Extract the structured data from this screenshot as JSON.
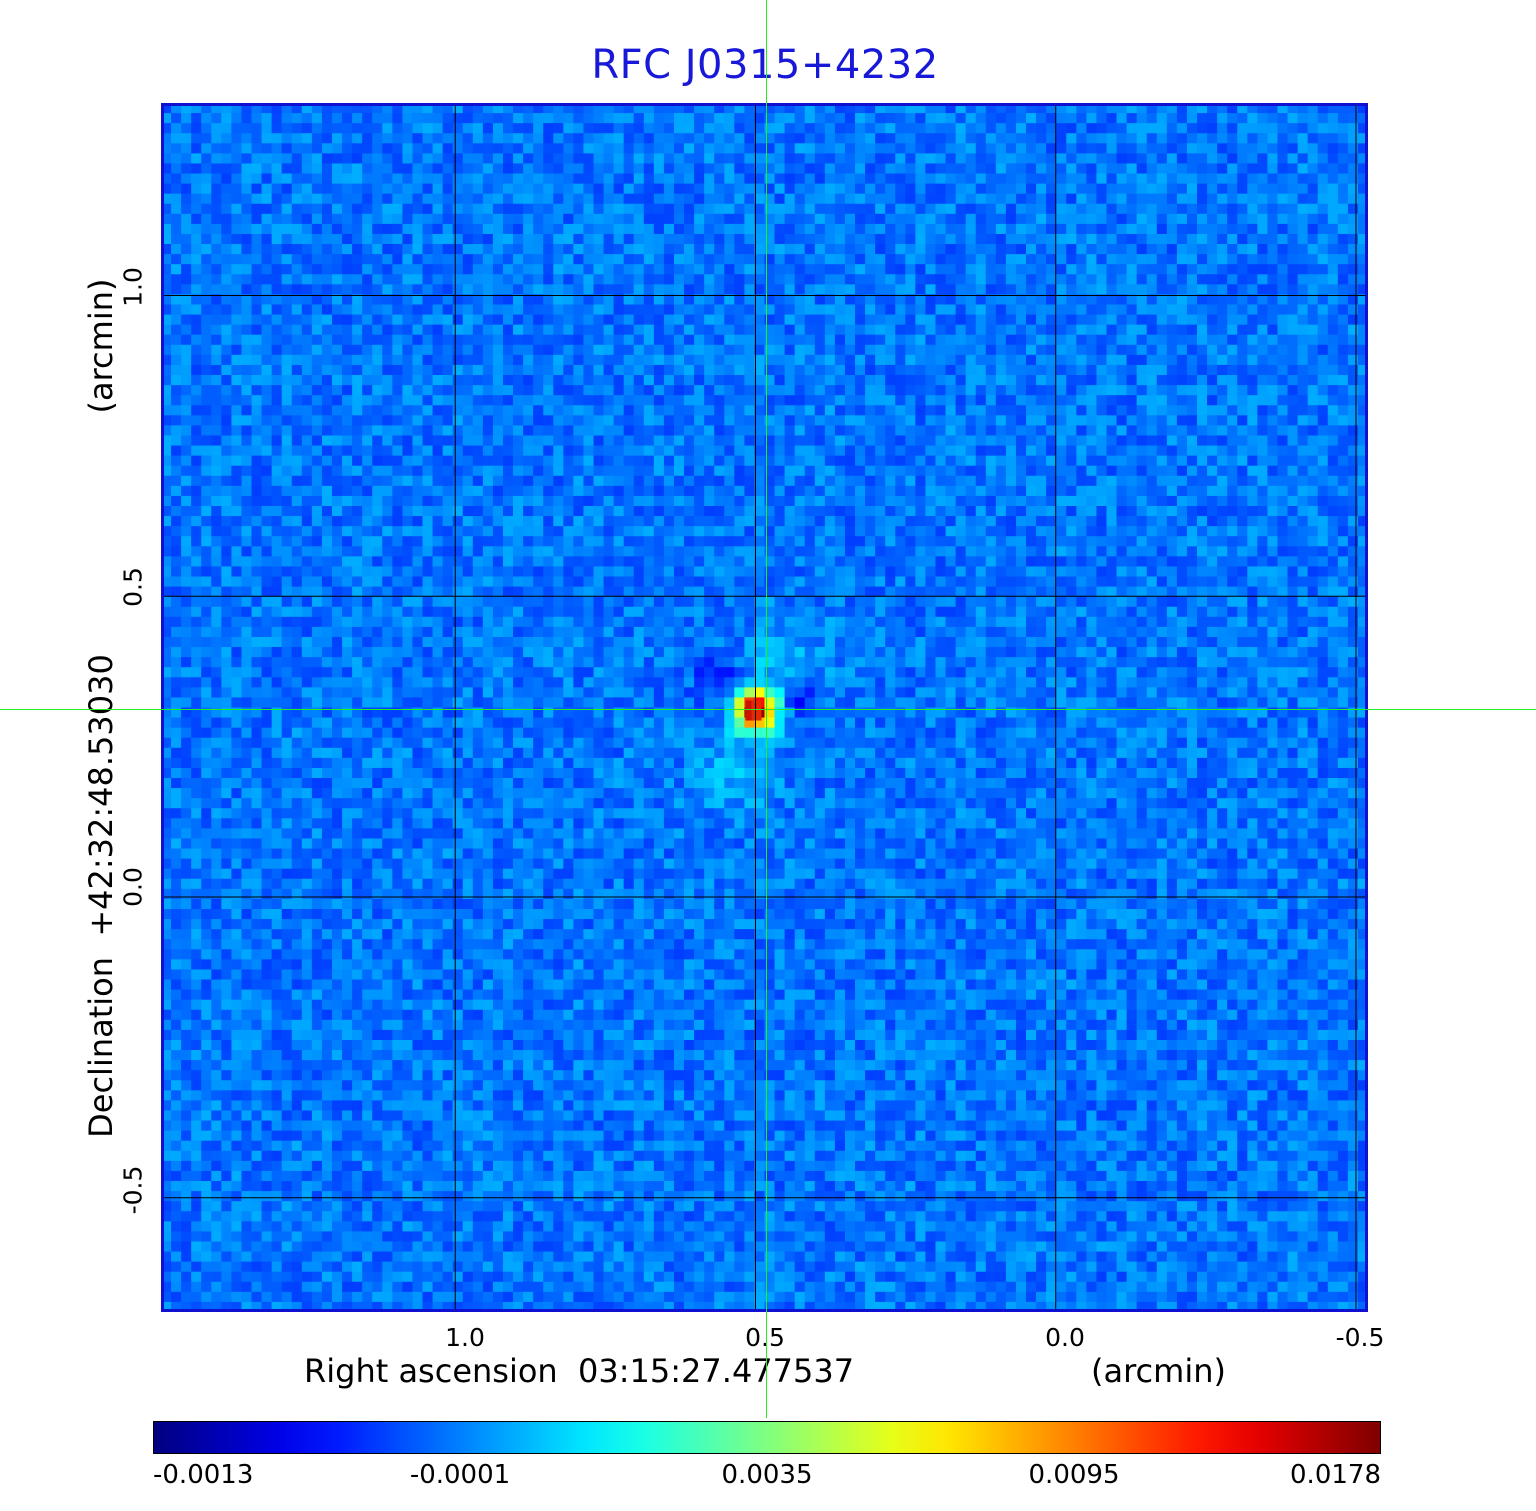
{
  "chart_data": {
    "type": "heatmap",
    "title": "RFC J0315+4232",
    "xlabel": "Right ascension  03:15:27.477537",
    "x_unit": "(arcmin)",
    "ylabel": "Declination  +42:32:48.53030",
    "y_unit": "(arcmin)",
    "x_ticks": [
      "1.0",
      "0.5",
      "0.0",
      "-0.5"
    ],
    "y_ticks": [
      "1.0",
      "0.5",
      "0.0",
      "-0.5"
    ],
    "x_tick_values": [
      1.0,
      0.5,
      0.0,
      -0.5
    ],
    "y_tick_values": [
      1.0,
      0.5,
      0.0,
      -0.5
    ],
    "xlim": [
      1.49,
      -0.52
    ],
    "ylim": [
      -0.69,
      1.32
    ],
    "grid": true,
    "colormap": "jet",
    "colorbar_ticks": [
      "-0.0013",
      "-0.0001",
      "0.0035",
      "0.0095",
      "0.0178"
    ],
    "colorbar_range": [
      -0.0013,
      0.0178
    ],
    "source_position": [
      0.5,
      0.31
    ],
    "crosshair": [
      0.5,
      0.31
    ]
  },
  "colors": {
    "title": "#1818d8",
    "frame": "#1010d0",
    "crosshair": "#22ee22",
    "grid": "#000000"
  }
}
